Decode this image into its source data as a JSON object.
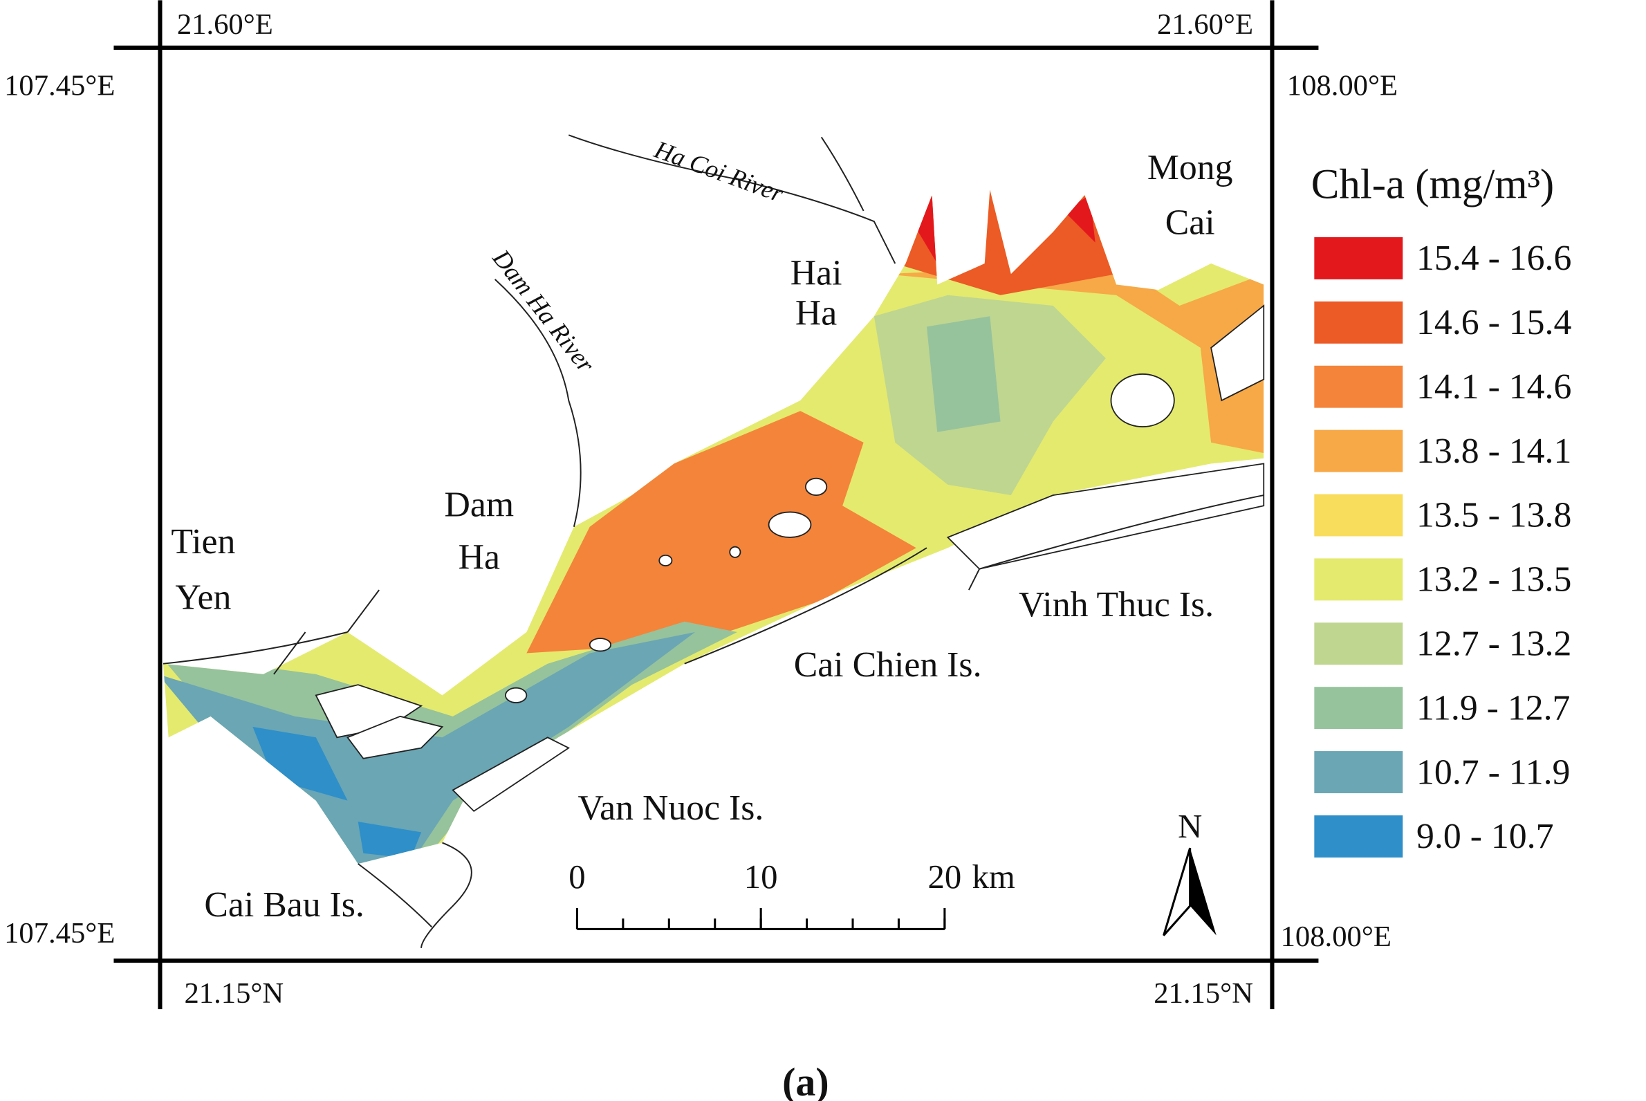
{
  "corners": {
    "top_left_lat": "21.60°E",
    "top_right_lat": "21.60°E",
    "left_top_lon": "107.45°E",
    "right_top_lon": "108.00°E",
    "left_bottom_lon": "107.45°E",
    "right_bottom_lon": "108.00°E",
    "bottom_left_lat": "21.15°N",
    "bottom_right_lat": "21.15°N"
  },
  "places": {
    "mong_cai": [
      "Mong",
      "Cai"
    ],
    "hai_ha": [
      "Hai",
      "Ha"
    ],
    "dam_ha": [
      "Dam",
      "Ha"
    ],
    "tien_yen": [
      "Tien",
      "Yen"
    ],
    "vinh_thuc": "Vinh Thuc Is.",
    "cai_chien": "Cai Chien Is.",
    "van_nuoc": "Van Nuoc Is.",
    "cai_bau": "Cai Bau Is.",
    "ha_coi_river": "Ha Coi River",
    "dam_ha_river": "Dam Ha River"
  },
  "legend": {
    "title": "Chl-a (mg/m³)",
    "items": [
      {
        "label": "15.4   - 16.6",
        "color": "#e3181d"
      },
      {
        "label": "14.6   - 15.4",
        "color": "#ec5a26"
      },
      {
        "label": "14.1   - 14.6",
        "color": "#f4843a"
      },
      {
        "label": "13.8   - 14.1",
        "color": "#f7a847"
      },
      {
        "label": "13.5   - 13.8",
        "color": "#f8dc5c"
      },
      {
        "label": "13.2   - 13.5",
        "color": "#e4ea6e"
      },
      {
        "label": "12.7   - 13.2",
        "color": "#bfd690"
      },
      {
        "label": "11.9   - 12.7",
        "color": "#96c39c"
      },
      {
        "label": "10.7   - 11.9",
        "color": "#6aa6b4"
      },
      {
        "label": "9.0    - 10.7",
        "color": "#2e8fc9"
      }
    ]
  },
  "scale_bar": {
    "ticks": [
      0,
      10,
      20
    ],
    "unit": "km"
  },
  "north": "N",
  "caption": "(a)"
}
